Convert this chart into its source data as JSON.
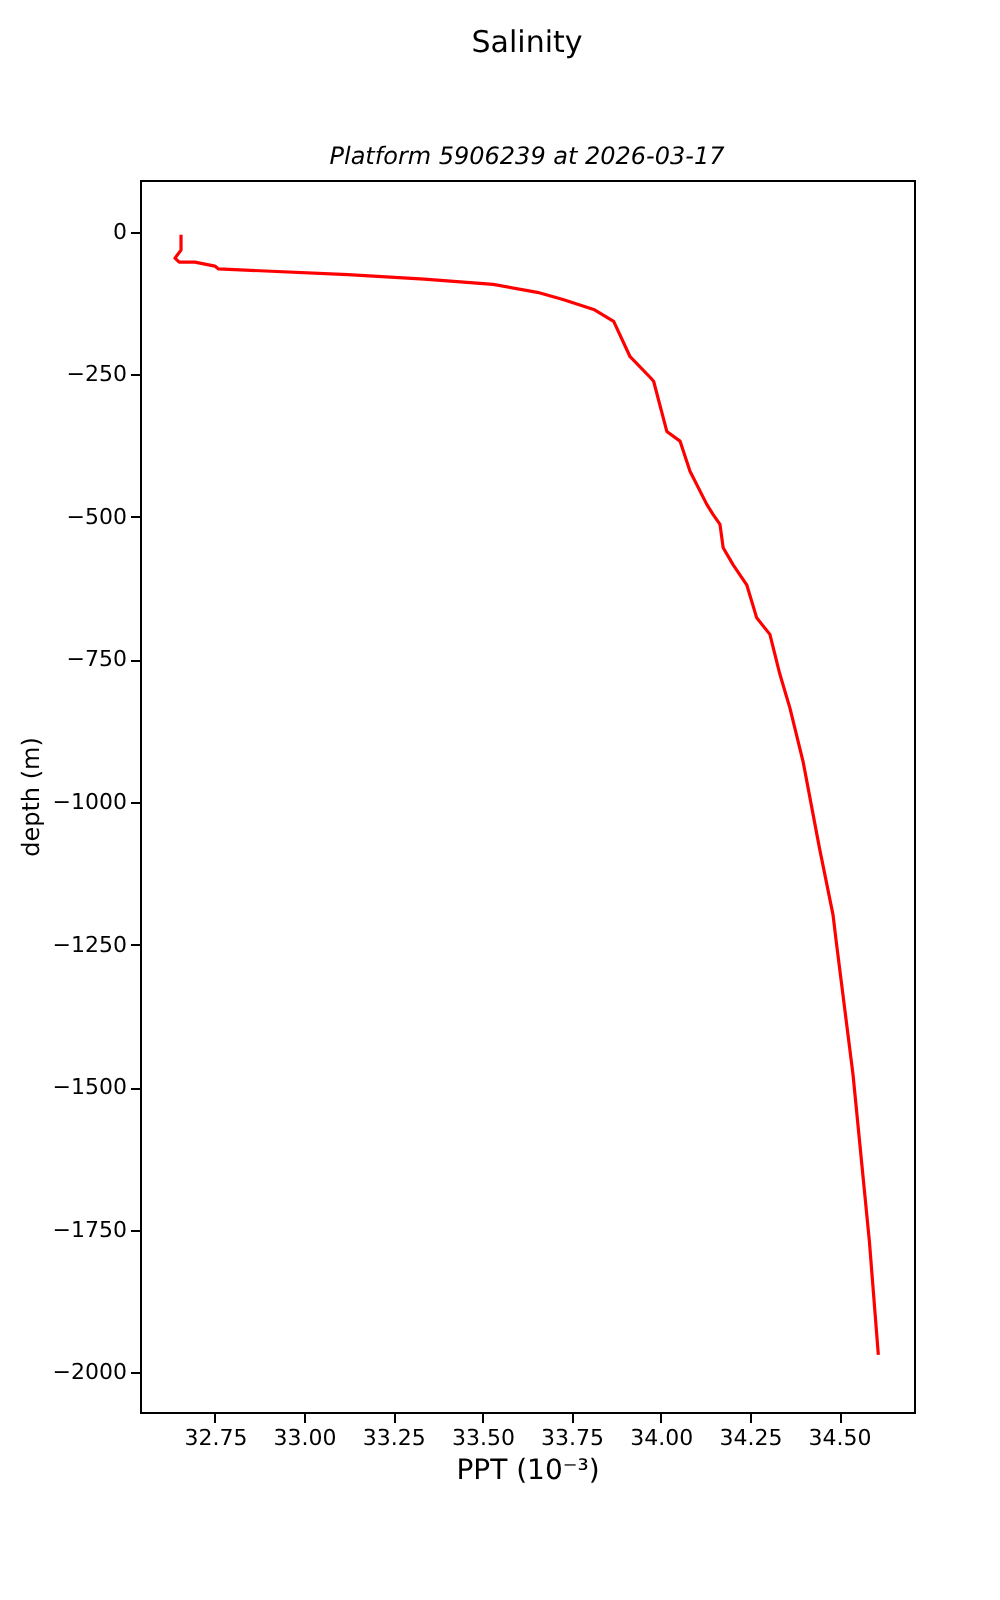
{
  "chart_data": {
    "type": "line",
    "title": "Salinity",
    "subtitle": "Platform 5906239 at 2026-03-17",
    "xlabel": "PPT (10⁻³)",
    "ylabel": "depth (m)",
    "series": [
      {
        "color": "#ff0000",
        "x": [
          32.655,
          32.655,
          32.638,
          32.65,
          32.694,
          32.75,
          32.76,
          33.123,
          33.337,
          33.53,
          33.654,
          33.728,
          33.812,
          33.868,
          33.914,
          33.97,
          33.98,
          34.017,
          34.054,
          34.082,
          34.129,
          34.147,
          34.166,
          34.175,
          34.203,
          34.241,
          34.269,
          34.306,
          34.334,
          34.362,
          34.399,
          34.445,
          34.483,
          34.492,
          34.539,
          34.585,
          34.61
        ],
        "values": [
          -5,
          -32,
          -46,
          -53,
          -53,
          -60,
          -65,
          -75,
          -83,
          -92,
          -106,
          -119,
          -136,
          -157,
          -219,
          -255,
          -262,
          -350,
          -367,
          -420,
          -478,
          -496,
          -513,
          -554,
          -584,
          -619,
          -677,
          -706,
          -776,
          -835,
          -929,
          -1081,
          -1198,
          -1245,
          -1478,
          -1771,
          -1970
        ]
      }
    ],
    "xlim": [
      32.54,
      34.71
    ],
    "ylim": [
      -2070,
      91
    ],
    "xticks": [
      32.75,
      {
        "value": 33,
        "label": "33.00"
      },
      33.25,
      {
        "value": 33.5,
        "label": "33.50"
      },
      33.75,
      {
        "value": 34,
        "label": "34.00"
      },
      34.25,
      {
        "value": 34.5,
        "label": "34.50"
      }
    ],
    "yticks": [
      {
        "value": -2000,
        "label": "−2000"
      },
      {
        "value": -1750,
        "label": "−1750"
      },
      {
        "value": -1500,
        "label": "−1500"
      },
      {
        "value": -1250,
        "label": "−1250"
      },
      {
        "value": -1000,
        "label": "−1000"
      },
      {
        "value": -750,
        "label": "−750"
      },
      {
        "value": -500,
        "label": "−500"
      },
      {
        "value": -250,
        "label": "−250"
      },
      0
    ],
    "grid": false,
    "legend": false,
    "line_style": "solid"
  }
}
